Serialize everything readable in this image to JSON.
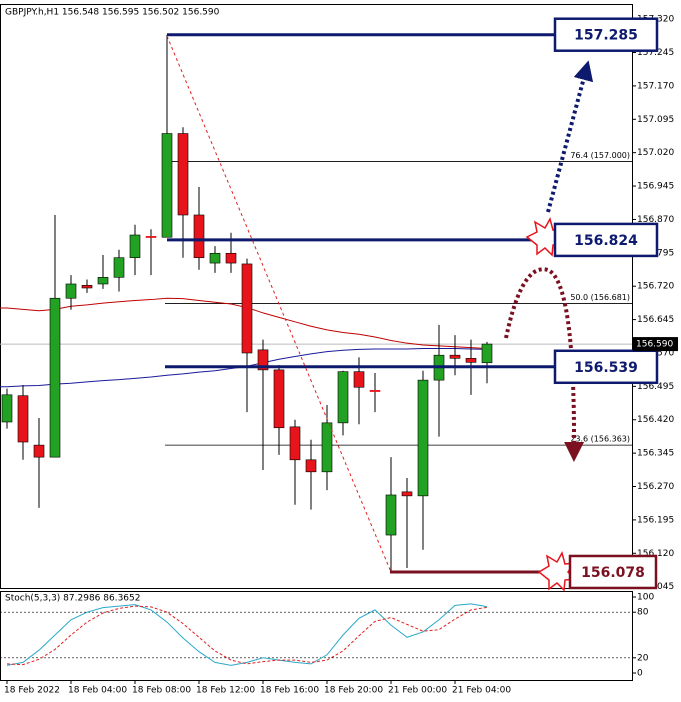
{
  "chart_data": {
    "type": "candlestick",
    "title": "GBPJPY.h,H1  156.548 156.595 156.502 156.590",
    "categories": [
      "18 Feb 2022",
      null,
      null,
      null,
      "18 Feb 04:00",
      null,
      null,
      null,
      "18 Feb 08:00",
      null,
      null,
      null,
      "18 Feb 12:00",
      null,
      null,
      null,
      "18 Feb 16:00",
      null,
      null,
      null,
      "18 Feb 20:00",
      null,
      null,
      null,
      "21 Feb 00:00",
      null,
      null,
      null,
      "21 Feb 04:00",
      null,
      null
    ],
    "open": [
      156.415,
      156.474,
      156.363,
      156.336,
      156.693,
      156.722,
      156.725,
      156.74,
      156.784,
      156.832,
      156.83,
      157.063,
      156.88,
      156.772,
      156.794,
      156.77,
      156.577,
      156.532,
      156.404,
      156.33,
      156.303,
      156.413,
      156.528,
      156.486,
      156.161,
      156.258,
      156.249,
      156.509,
      156.565,
      156.558,
      156.548
    ],
    "high": [
      156.49,
      156.498,
      156.424,
      156.88,
      156.745,
      156.735,
      156.79,
      156.802,
      156.858,
      156.848,
      157.285,
      157.077,
      156.943,
      156.81,
      156.84,
      156.782,
      156.6,
      156.543,
      156.42,
      156.375,
      156.453,
      156.53,
      156.56,
      156.525,
      156.336,
      156.289,
      156.53,
      156.633,
      156.61,
      156.6,
      156.595
    ],
    "low": [
      156.4,
      156.33,
      156.222,
      156.336,
      156.667,
      156.705,
      156.714,
      156.708,
      156.745,
      156.745,
      156.83,
      156.784,
      156.757,
      156.75,
      156.75,
      156.437,
      156.307,
      156.341,
      156.229,
      156.218,
      156.262,
      156.385,
      156.41,
      156.437,
      156.078,
      156.087,
      156.128,
      156.382,
      156.52,
      156.476,
      156.502
    ],
    "close": [
      156.476,
      156.37,
      156.336,
      156.693,
      156.725,
      156.716,
      156.74,
      156.784,
      156.835,
      156.83,
      157.063,
      156.88,
      156.784,
      156.794,
      156.772,
      156.57,
      156.532,
      156.402,
      156.33,
      156.303,
      156.413,
      156.528,
      156.493,
      156.484,
      156.251,
      156.249,
      156.509,
      156.565,
      156.558,
      156.549,
      156.59
    ],
    "up_color": "#22a122",
    "down_color": "#e8141b",
    "moving_averages": [
      {
        "color": "#c00000",
        "values": [
          156.671,
          156.668,
          156.665,
          156.668,
          156.675,
          156.678,
          156.682,
          156.685,
          156.688,
          156.69,
          156.693,
          156.692,
          156.688,
          156.684,
          156.68,
          156.672,
          156.66,
          156.65,
          156.64,
          156.63,
          156.622,
          156.616,
          156.612,
          156.606,
          156.598,
          156.592,
          156.588,
          156.586,
          156.584,
          156.582,
          156.58
        ]
      },
      {
        "color": "#1a1a9c",
        "values": [
          156.494,
          156.496,
          156.497,
          156.5,
          156.502,
          156.505,
          156.508,
          156.51,
          156.513,
          156.516,
          156.52,
          156.523,
          156.527,
          156.53,
          156.535,
          156.54,
          156.548,
          156.556,
          156.562,
          156.568,
          156.573,
          156.576,
          156.578,
          156.579,
          156.579,
          156.579,
          156.58,
          156.58,
          156.58,
          156.579,
          156.578
        ]
      }
    ],
    "ylim": [
      156.042,
      157.354
    ],
    "yticks": [
      {
        "value": 157.32,
        "label": "157.320"
      },
      157.245,
      {
        "value": 157.17,
        "label": "157.170"
      },
      157.095,
      {
        "value": 157.02,
        "label": "157.020"
      },
      156.945,
      {
        "value": 156.87,
        "label": "156.870"
      },
      156.795,
      {
        "value": 156.72,
        "label": "156.720"
      },
      156.645,
      {
        "value": 156.57,
        "label": "156.570"
      },
      156.495,
      {
        "value": 156.42,
        "label": "156.420"
      },
      156.345,
      {
        "value": 156.27,
        "label": "156.270"
      },
      156.195,
      {
        "value": 156.12,
        "label": "156.120"
      },
      156.045
    ],
    "current_price": {
      "value": 156.59,
      "label": "156.590"
    },
    "fib_levels": [
      {
        "value": 157.0,
        "label": "76.4 (157.000)"
      },
      {
        "value": 156.681,
        "label": "50.0 (156.681)"
      },
      {
        "value": 156.363,
        "label": "23.6 (156.363)"
      }
    ],
    "key_levels": [
      {
        "value": 157.285,
        "color": "#0d1a6e"
      },
      {
        "value": 156.824,
        "color": "#0d1a6e"
      },
      {
        "value": 156.539,
        "color": "#0d1a6e"
      },
      {
        "value": 156.078,
        "color": "#7a1020"
      }
    ],
    "indicator": {
      "title": "Stoch(5,3,3) 87.2986 86.3652",
      "main": {
        "color": "#29a9c9",
        "values": [
          10,
          14,
          30,
          50,
          70,
          80,
          86,
          88,
          90,
          83,
          67,
          46,
          28,
          14,
          10,
          14,
          20,
          17,
          14,
          12,
          24,
          50,
          72,
          83,
          63,
          47,
          54,
          70,
          89,
          91,
          87.2986
        ]
      },
      "signal": {
        "color": "#e02020",
        "values": [
          12,
          11,
          18,
          31,
          50,
          67,
          79,
          85,
          88,
          87,
          80,
          65,
          47,
          29,
          17,
          12,
          15,
          17,
          17,
          14,
          17,
          29,
          49,
          68,
          73,
          64,
          55,
          57,
          71,
          83,
          86.3652
        ]
      },
      "ylim": [
        0,
        100
      ],
      "yticks": [
        0,
        20,
        80,
        100
      ],
      "levels": [
        20,
        80
      ]
    }
  }
}
